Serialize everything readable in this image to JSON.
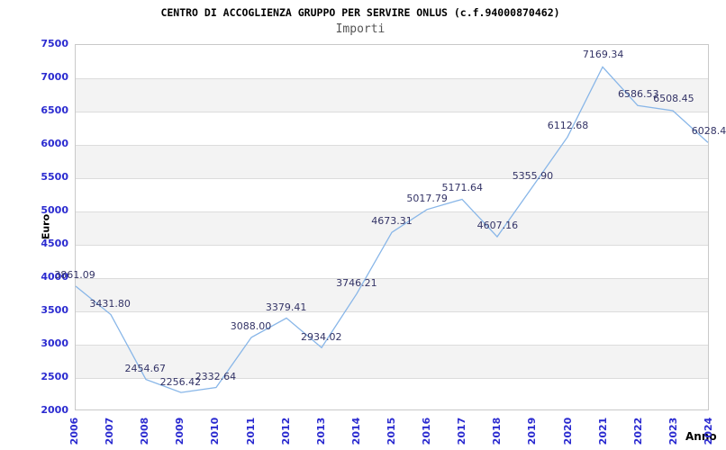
{
  "colors": {
    "title": "#000000",
    "subtitle": "#555555",
    "tick": "#2b2bd0",
    "dlabel": "#333366",
    "line": "#88b6e8",
    "band": "#f3f3f3",
    "grid": "#dcdcdc",
    "border": "#c9c9c9",
    "axis": "#000000"
  },
  "chart_data": {
    "type": "line",
    "title": "CENTRO DI ACCOGLIENZA GRUPPO PER SERVIRE ONLUS (c.f.94000870462)",
    "subtitle": "Importi",
    "xlabel": "Anno",
    "ylabel": "Euro",
    "ylim": [
      2000,
      7500
    ],
    "ytick_step": 500,
    "grid": "horizontal-alternating-bands",
    "legend": "none",
    "categories": [
      "2006",
      "2007",
      "2008",
      "2009",
      "2010",
      "2011",
      "2012",
      "2013",
      "2014",
      "2015",
      "2016",
      "2017",
      "2018",
      "2019",
      "2020",
      "2021",
      "2022",
      "2023",
      "2024"
    ],
    "values": [
      3861.09,
      3431.8,
      2454.67,
      2256.42,
      2332.64,
      3088.0,
      3379.41,
      2934.02,
      3746.21,
      4673.31,
      5017.79,
      5171.64,
      4607.16,
      5355.9,
      6112.68,
      7169.34,
      6586.53,
      6508.45,
      6028.4
    ],
    "point_labels": [
      "3861.09",
      "3431.80",
      "2454.67",
      "2256.42",
      "2332.64",
      "3088.00",
      "3379.41",
      "2934.02",
      "3746.21",
      "4673.31",
      "5017.79",
      "5171.64",
      "4607.16",
      "5355.90",
      "6112.68",
      "7169.34",
      "6586.53",
      "6508.45",
      "6028.4"
    ]
  }
}
